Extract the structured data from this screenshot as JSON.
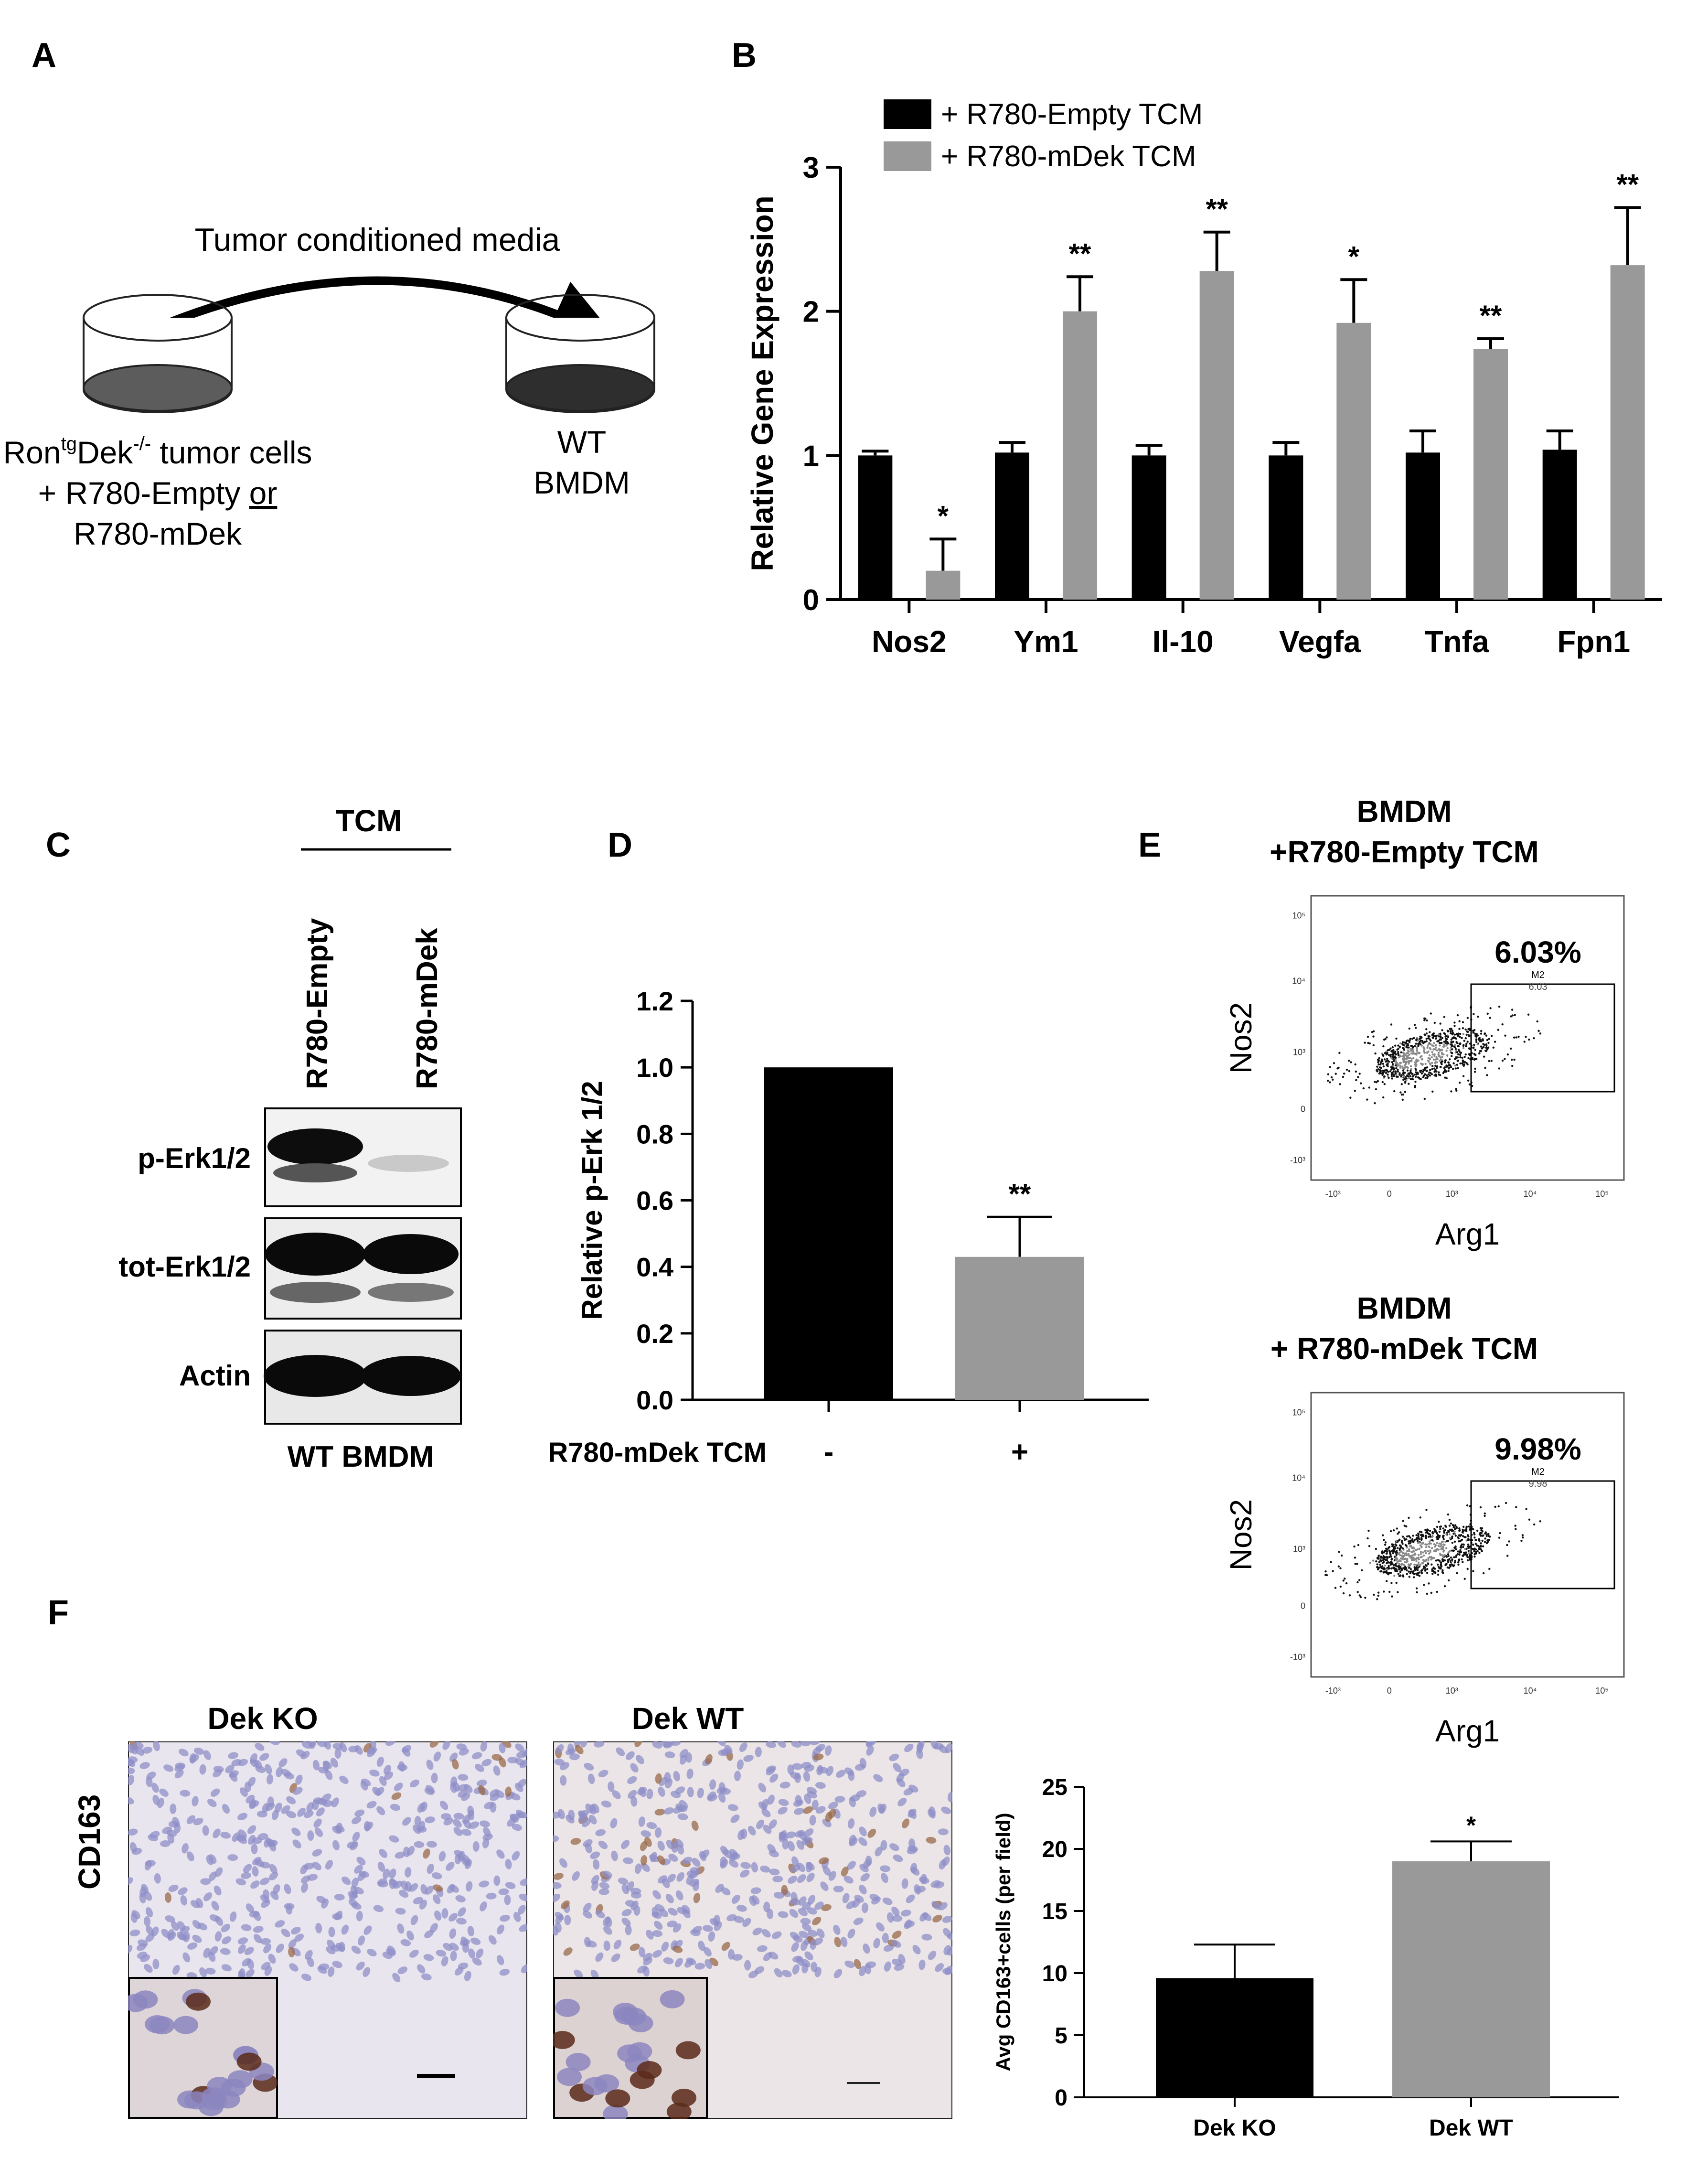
{
  "panel_labels": {
    "a": "A",
    "b": "B",
    "c": "C",
    "d": "D",
    "e": "E",
    "f": "F"
  },
  "panel_a": {
    "arrow_label": "Tumor conditioned media",
    "left_line1_pre": "Ron",
    "left_line1_sup1": "tg",
    "left_line1_mid": "Dek",
    "left_line1_sup2": "-/-",
    "left_line1_post": " tumor cells",
    "left_line2_pre": "+ R780-Empty ",
    "left_line2_or": "or",
    "left_line3": "R780-mDek",
    "right_line1": "WT",
    "right_line2": "BMDM",
    "left_dish_color": "#5c5c5c",
    "right_dish_color": "#2e2e2e"
  },
  "chart_data": [
    {
      "id": "B",
      "type": "bar",
      "ylabel": "Relative  Gene Expression",
      "ylim": [
        0,
        3
      ],
      "yticks": [
        "0",
        "1",
        "2",
        "3"
      ],
      "categories": [
        "Nos2",
        "Ym1",
        "Il-10",
        "Vegfa",
        "Tnfa",
        "Fpn1"
      ],
      "series": [
        {
          "name": "+ R780-Empty TCM",
          "color": "#000000",
          "values": [
            1.0,
            1.02,
            1.0,
            1.0,
            1.02,
            1.04
          ],
          "errors": [
            0.03,
            0.07,
            0.07,
            0.09,
            0.15,
            0.13
          ]
        },
        {
          "name": "+ R780-mDek TCM",
          "color": "#999999",
          "values": [
            0.2,
            2.0,
            2.28,
            1.92,
            1.74,
            2.32
          ],
          "errors": [
            0.22,
            0.24,
            0.27,
            0.3,
            0.07,
            0.4
          ],
          "significance": [
            "*",
            "**",
            "**",
            "*",
            "**",
            "**"
          ]
        }
      ]
    },
    {
      "id": "D",
      "type": "bar",
      "ylabel": "Relative p-Erk 1/2",
      "ylim": [
        0,
        1.2
      ],
      "yticks": [
        "0.0",
        "0.2",
        "0.4",
        "0.6",
        "0.8",
        "1.0",
        "1.2"
      ],
      "group_label": "R780-mDek TCM",
      "categories": [
        "-",
        "+"
      ],
      "values": [
        1.0,
        0.43
      ],
      "errors": [
        0,
        0.12
      ],
      "colors": [
        "#000000",
        "#999999"
      ],
      "significance": [
        "",
        "**"
      ]
    },
    {
      "id": "E1",
      "type": "scatter",
      "title_line1": "BMDM",
      "title_line2": "+R780-Empty TCM",
      "xlabel": "Arg1",
      "ylabel": "Nos2",
      "gate_percent": "6.03%",
      "gate_name": "M2",
      "gate_value": "6.03",
      "axis_ticks": [
        "-10³",
        "0",
        "10³",
        "10⁴",
        "10⁵"
      ]
    },
    {
      "id": "E2",
      "type": "scatter",
      "title_line1": "BMDM",
      "title_line2": "+ R780-mDek TCM",
      "xlabel": "Arg1",
      "ylabel": "Nos2",
      "gate_percent": "9.98%",
      "gate_name": "M2",
      "gate_value": "9.98",
      "axis_ticks": [
        "-10³",
        "0",
        "10³",
        "10⁴",
        "10⁵"
      ]
    },
    {
      "id": "F",
      "type": "bar",
      "ylabel": "Avg CD163+cells (per field)",
      "ylim": [
        0,
        25
      ],
      "yticks": [
        "0",
        "5",
        "10",
        "15",
        "20",
        "25"
      ],
      "categories": [
        "Dek KO",
        "Dek WT"
      ],
      "values": [
        9.6,
        19.0
      ],
      "errors": [
        2.7,
        1.6
      ],
      "colors": [
        "#000000",
        "#999999"
      ],
      "significance": [
        "",
        "*"
      ]
    }
  ],
  "panel_c": {
    "tcm_label": "TCM",
    "lane_labels": [
      "R780-Empty",
      "R780-mDek"
    ],
    "row_labels": [
      "p-Erk1/2",
      "tot-Erk1/2",
      "Actin"
    ],
    "bottom_label": "WT BMDM"
  },
  "panel_f": {
    "row_label": "CD163",
    "image_titles": [
      "Dek KO",
      "Dek WT"
    ]
  }
}
